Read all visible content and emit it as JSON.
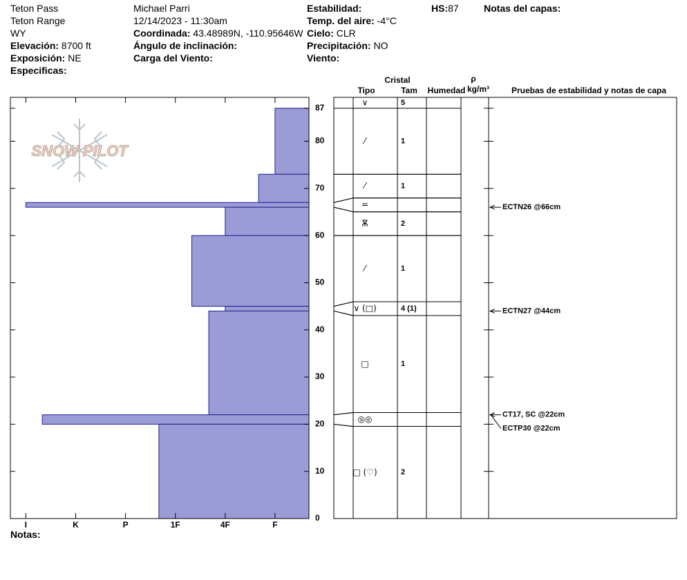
{
  "header": {
    "location": "Teton Pass",
    "range": "Teton Range",
    "state": "WY",
    "elevation": {
      "label": "Elevación:",
      "value": "8700 ft"
    },
    "aspect": {
      "label": "Exposición:",
      "value": "NE"
    },
    "specifics": {
      "label": "Especificas:"
    },
    "observer": "Michael Parri",
    "datetime": "12/14/2023 - 11:30am",
    "coordinates": {
      "label": "Coordinada:",
      "value": "43.48989N, -110.95646W"
    },
    "slope": {
      "label": "Ángulo de inclinación:"
    },
    "wind_loading": {
      "label": "Carga del Viento:"
    },
    "stability": {
      "label": "Estabilidad:"
    },
    "air_temp": {
      "label": "Temp. del aire:",
      "value": "-4°C"
    },
    "sky": {
      "label": "Cielo:",
      "value": "CLR"
    },
    "precipitation": {
      "label": "Precipitación:",
      "value": "NO"
    },
    "wind": {
      "label": "Viento:"
    },
    "hs": {
      "label": "HS:",
      "value": "87"
    },
    "layer_notes": {
      "label": "Notas del capas:"
    }
  },
  "notes": {
    "label": "Notas:"
  },
  "chart_data": {
    "type": "snow_profile",
    "logo": "SNOW PILOT",
    "bar_color": "#9b9bd8",
    "xlim": [
      6.31,
      0.32
    ],
    "xticks": [
      {
        "value": 6,
        "label": "I"
      },
      {
        "value": 5,
        "label": "K"
      },
      {
        "value": 4,
        "label": "P"
      },
      {
        "value": 3,
        "label": "1F"
      },
      {
        "value": 2,
        "label": "4F"
      },
      {
        "value": 1,
        "label": "F"
      }
    ],
    "ylim": [
      0,
      89.3
    ],
    "yticks": [
      0,
      10,
      20,
      30,
      40,
      50,
      60,
      70,
      80,
      87
    ],
    "columns": {
      "crystal": "Cristal",
      "type": "Tipo",
      "size": "Tam",
      "moisture": "Humedad",
      "density_symbol": "ρ",
      "density_unit": "kg/m³",
      "tests": "Pruebas de estabilidad y notas de capa"
    },
    "surface": {
      "grain": "∨",
      "size": "5"
    },
    "layers": [
      {
        "top": 87,
        "bottom": 73,
        "hardness": 1,
        "grain": "⁄",
        "size": "1"
      },
      {
        "top": 73,
        "bottom": 67,
        "hardness": 1.33,
        "grain": "⁄",
        "size": "1"
      },
      {
        "top": 67,
        "bottom": 66,
        "hardness": 6,
        "grain": "="
      },
      {
        "top": 66,
        "bottom": 60,
        "hardness": 2,
        "grain": "Ѫ",
        "size": "2"
      },
      {
        "top": 60,
        "bottom": 45,
        "hardness": 2.67,
        "grain": "⁄",
        "size": "1"
      },
      {
        "top": 45,
        "bottom": 44,
        "hardness": 2,
        "grain": "∨ (□)",
        "size": "4 (1)"
      },
      {
        "top": 44,
        "bottom": 22,
        "hardness": 2.33,
        "grain": "□",
        "size": "1"
      },
      {
        "top": 22,
        "bottom": 20,
        "hardness": 5.67,
        "grain": "◎◎"
      },
      {
        "top": 20,
        "bottom": 0,
        "hardness": 3.33,
        "grain": "□ (♡)",
        "size": "2"
      }
    ],
    "tests": [
      {
        "depth": 66,
        "text": "ECTN26 @66cm"
      },
      {
        "depth": 44,
        "text": "ECTN27 @44cm"
      },
      {
        "depth": 22,
        "text": "CT17, SC @22cm"
      },
      {
        "depth": 22,
        "text": "ECTP30 @22cm"
      }
    ]
  }
}
